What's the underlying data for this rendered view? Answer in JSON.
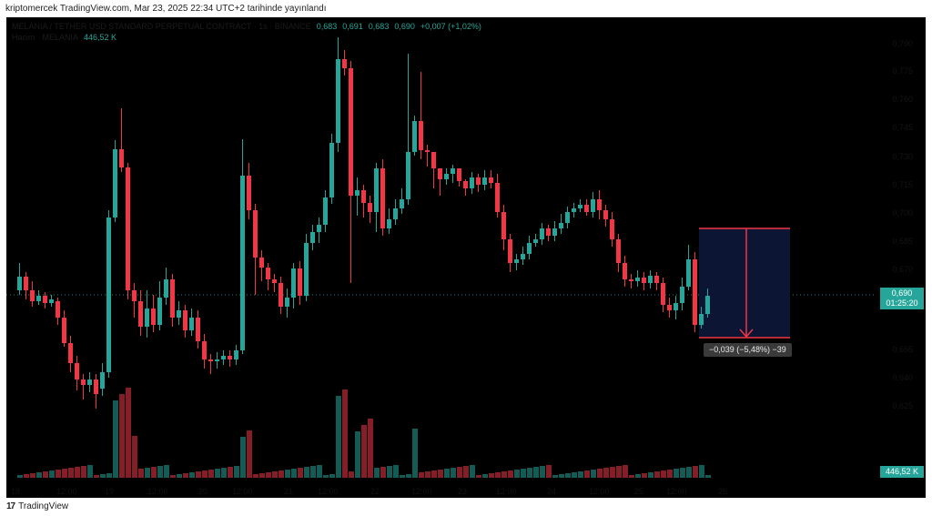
{
  "header": {
    "text": "kriptomercek TradingView.com, Mar 23, 2025 22:34 UTC+2 tarihinde yayınlandı"
  },
  "footer": {
    "brand_logo": "17",
    "brand_name": "TradingView"
  },
  "legend": {
    "symbol": "MELANIA / TETHER USD STANDARD PERPETUAL CONTRACT · 1s · BINANCE",
    "open": "0,683",
    "high": "0,691",
    "low": "0,683",
    "close": "0,690",
    "change": "+0,007 (+1,02%)",
    "volume_label": "Hacim · MELANIA",
    "volume_value": "446,52 K"
  },
  "price_axis": {
    "ticks": [
      "0,790",
      "0,775",
      "0,760",
      "0,745",
      "0,730",
      "0,715",
      "0,700",
      "0,685",
      "0,670",
      "0,655",
      "0,640",
      "0,625"
    ]
  },
  "time_axis": {
    "ticks": [
      "18",
      "12:00",
      "19",
      "12:00",
      "20",
      "12:00",
      "21",
      "12:00",
      "22",
      "12:00",
      "23",
      "12:00",
      "24",
      "12:00",
      "25",
      "12:00",
      "26"
    ]
  },
  "last_price": {
    "price": "0,690",
    "countdown": "01:25:20"
  },
  "volume_tag": "446,52 K",
  "measure": {
    "label": "−0,039 (−5,48%) −39"
  },
  "colors": {
    "up": "#26a69a",
    "down": "#f23645",
    "background": "#000000",
    "measure_fill": "#0c1533"
  }
}
